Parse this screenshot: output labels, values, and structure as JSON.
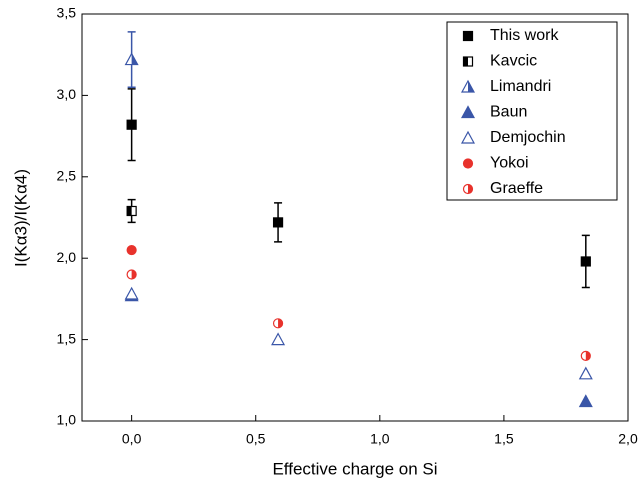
{
  "chart_data": {
    "type": "scatter",
    "xlabel": "Effective charge on Si",
    "ylabel": "I(Kα3)/I(Kα4)",
    "xlim": [
      -0.2,
      2.0
    ],
    "ylim": [
      1.0,
      3.5
    ],
    "xticks": [
      {
        "value": 0,
        "label": "0,0"
      },
      {
        "value": 0.5,
        "label": "0,5"
      },
      {
        "value": 1.0,
        "label": "1,0"
      },
      {
        "value": 1.5,
        "label": "1,5"
      },
      {
        "value": 2.0,
        "label": "2,0"
      }
    ],
    "yticks": [
      {
        "value": 1.0,
        "label": "1,0"
      },
      {
        "value": 1.5,
        "label": "1,5"
      },
      {
        "value": 2.0,
        "label": "2,0"
      },
      {
        "value": 2.5,
        "label": "2,5"
      },
      {
        "value": 3.0,
        "label": "3,0"
      },
      {
        "value": 3.5,
        "label": "3,5"
      }
    ],
    "legend": "upper right",
    "series": [
      {
        "name": "This work",
        "color": "#000000",
        "marker": "square",
        "fill": "full",
        "x": [
          0,
          0.59,
          1.83
        ],
        "values": [
          2.82,
          2.22,
          1.98
        ],
        "errors": [
          0.22,
          0.12,
          0.16
        ]
      },
      {
        "name": "Kavcic",
        "color": "#000000",
        "marker": "square",
        "fill": "half",
        "x": [
          0
        ],
        "values": [
          2.29
        ],
        "errors": [
          0.07
        ]
      },
      {
        "name": "Limandri",
        "color": "#3a56a8",
        "marker": "triangle",
        "fill": "half",
        "x": [
          0
        ],
        "values": [
          3.22
        ],
        "errors": [
          0.17
        ]
      },
      {
        "name": "Baun",
        "color": "#3a56a8",
        "marker": "triangle",
        "fill": "full",
        "x": [
          0,
          1.83
        ],
        "values": [
          1.77,
          1.12
        ]
      },
      {
        "name": "Demjochin",
        "color": "#3a56a8",
        "marker": "triangle",
        "fill": "none",
        "x": [
          0,
          0.59,
          1.83
        ],
        "values": [
          1.78,
          1.5,
          1.29
        ]
      },
      {
        "name": "Yokoi",
        "color": "#e8322c",
        "marker": "circle",
        "fill": "full",
        "x": [
          0
        ],
        "values": [
          2.05
        ]
      },
      {
        "name": "Graeffe",
        "color": "#e8322c",
        "marker": "circle",
        "fill": "half",
        "x": [
          0,
          0.59,
          1.83
        ],
        "values": [
          1.9,
          1.6,
          1.4
        ]
      }
    ]
  }
}
